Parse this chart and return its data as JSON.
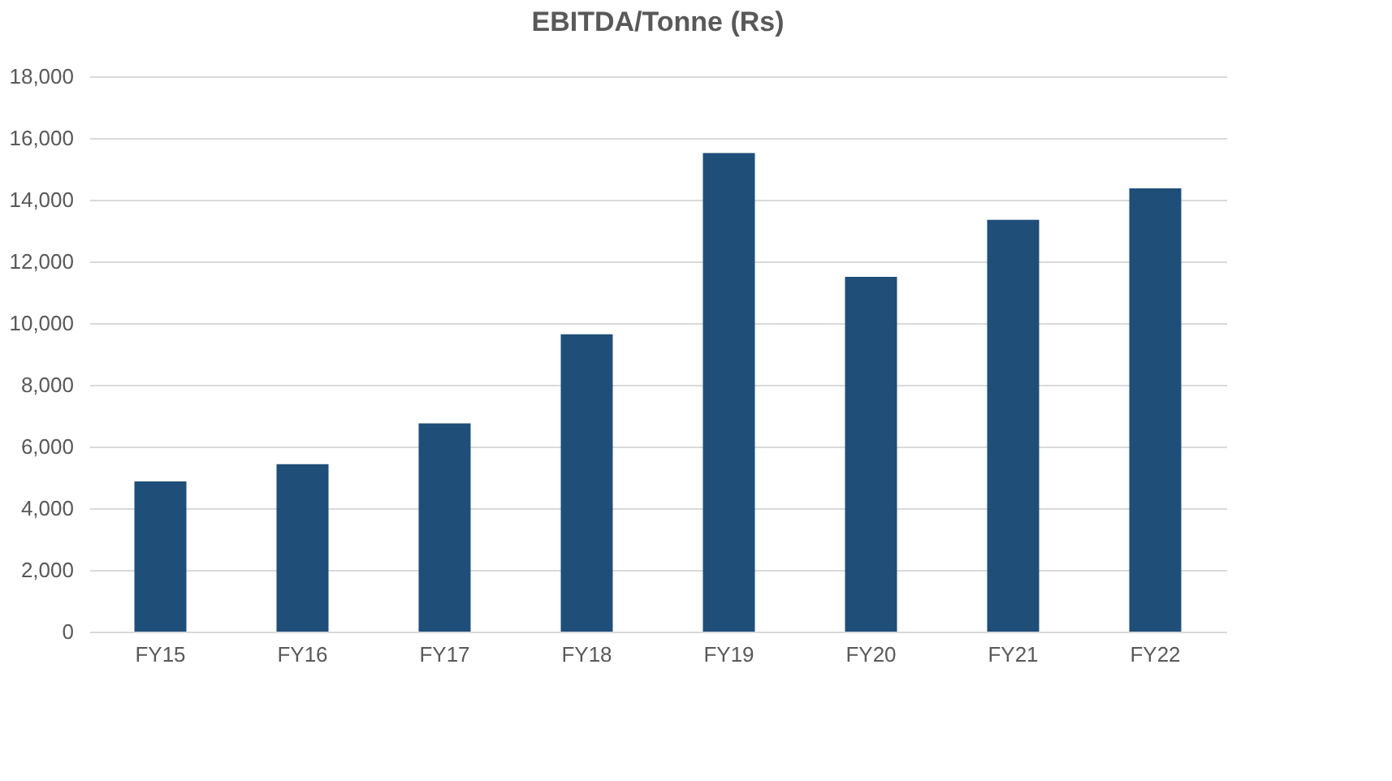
{
  "chart_data": {
    "type": "bar",
    "title": "EBITDA/Tonne (Rs)",
    "categories": [
      "FY15",
      "FY16",
      "FY17",
      "FY18",
      "FY19",
      "FY20",
      "FY21",
      "FY22"
    ],
    "values": [
      4870,
      5430,
      6750,
      9640,
      15510,
      11500,
      13350,
      14370
    ],
    "color": "#1f4e79",
    "ylim": [
      0,
      18000
    ],
    "yticks": [
      {
        "value": 0,
        "label": "0"
      },
      {
        "value": 2000,
        "label": "2,000"
      },
      {
        "value": 4000,
        "label": "4,000"
      },
      {
        "value": 6000,
        "label": "6,000"
      },
      {
        "value": 8000,
        "label": "8,000"
      },
      {
        "value": 10000,
        "label": "10,000"
      },
      {
        "value": 12000,
        "label": "12,000"
      },
      {
        "value": 14000,
        "label": "14,000"
      },
      {
        "value": 16000,
        "label": "16,000"
      },
      {
        "value": 18000,
        "label": "18,000"
      }
    ],
    "grid": "y"
  }
}
